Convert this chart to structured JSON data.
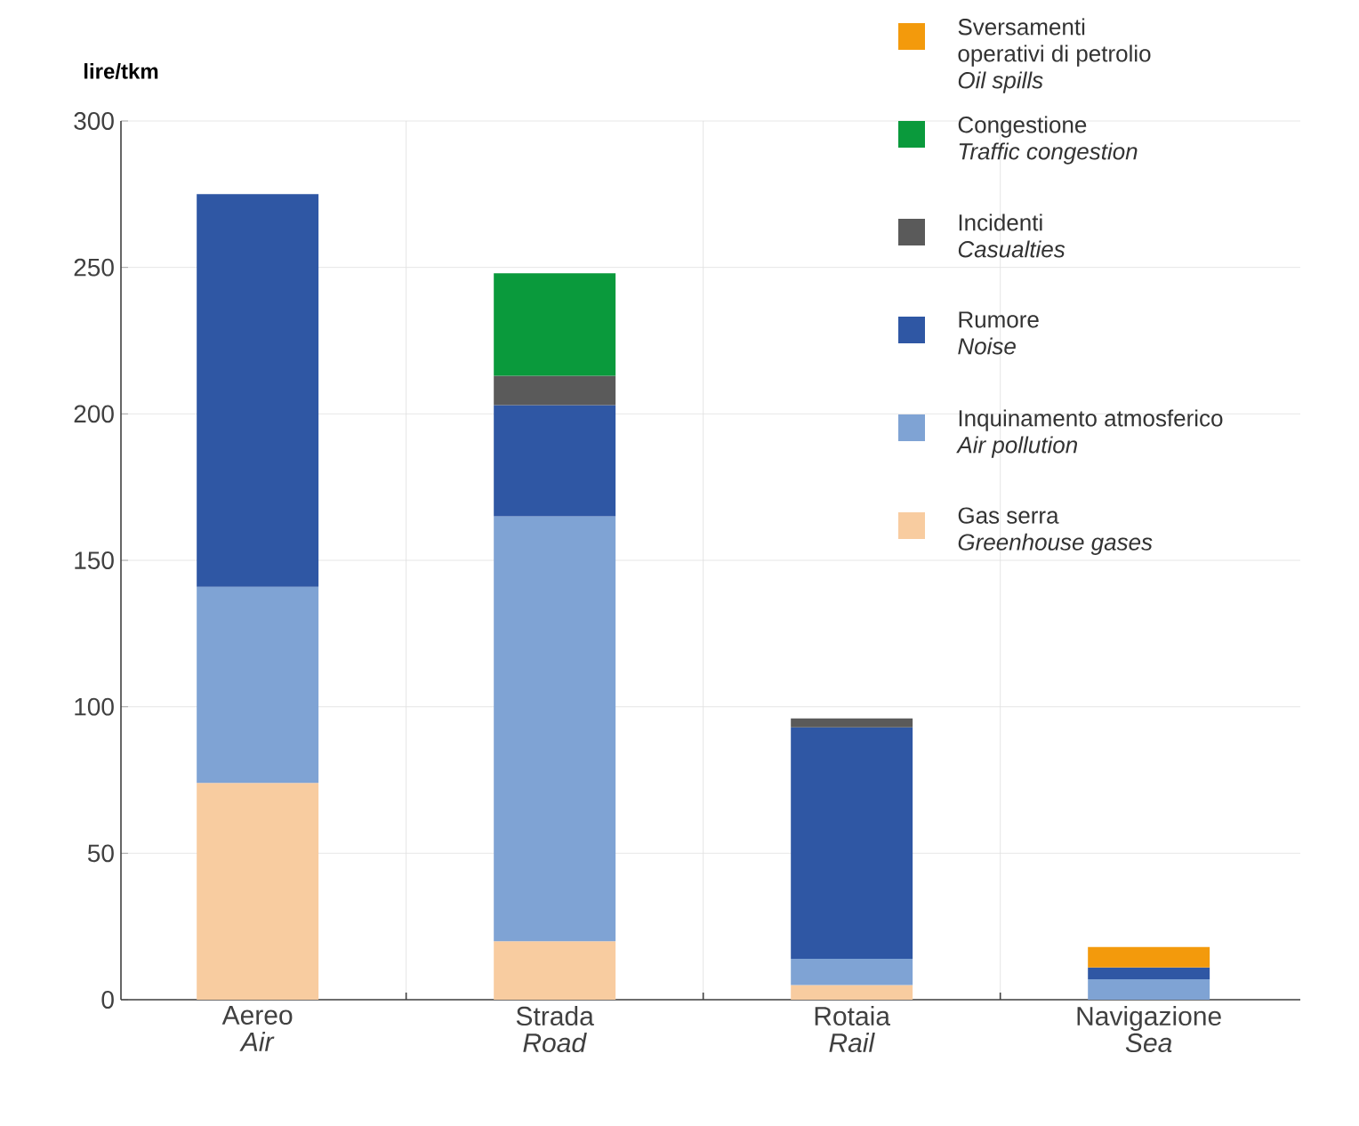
{
  "chart_data": {
    "type": "bar",
    "stacked": true,
    "ylabel": "lire/tkm",
    "categories": [
      "Aereo\n*Air*",
      "Strada\n*Road*",
      "Rotaia\n*Rail*",
      "Navigazione\n*Sea*"
    ],
    "series": [
      {
        "name": "Gas serra\n*Greenhouse gases*",
        "color": "#f8cca0",
        "values": [
          74,
          20,
          5,
          null
        ]
      },
      {
        "name": "Inquinamento atmosferico\n*Air pollution*",
        "color": "#7fa3d4",
        "values": [
          67,
          145,
          9,
          7
        ]
      },
      {
        "name": "Rumore\n*Noise*",
        "color": "#2f57a4",
        "values": [
          134,
          38,
          79,
          4
        ]
      },
      {
        "name": "Incidenti\n*Casualties*",
        "color": "#5a5a5a",
        "values": [
          null,
          10,
          3,
          null
        ]
      },
      {
        "name": "Congestione\n*Traffic congestion*",
        "color": "#0a9a3c",
        "values": [
          null,
          35,
          null,
          null
        ]
      },
      {
        "name": "Sversamenti\noperativi di petrolio\n*Oil spills*",
        "color": "#f39a0c",
        "values": [
          null,
          null,
          null,
          7
        ]
      }
    ],
    "ylim": [
      0,
      300
    ],
    "yticks": [
      0,
      50,
      100,
      150,
      200,
      250,
      300
    ],
    "grid": true,
    "legend": "top right"
  }
}
